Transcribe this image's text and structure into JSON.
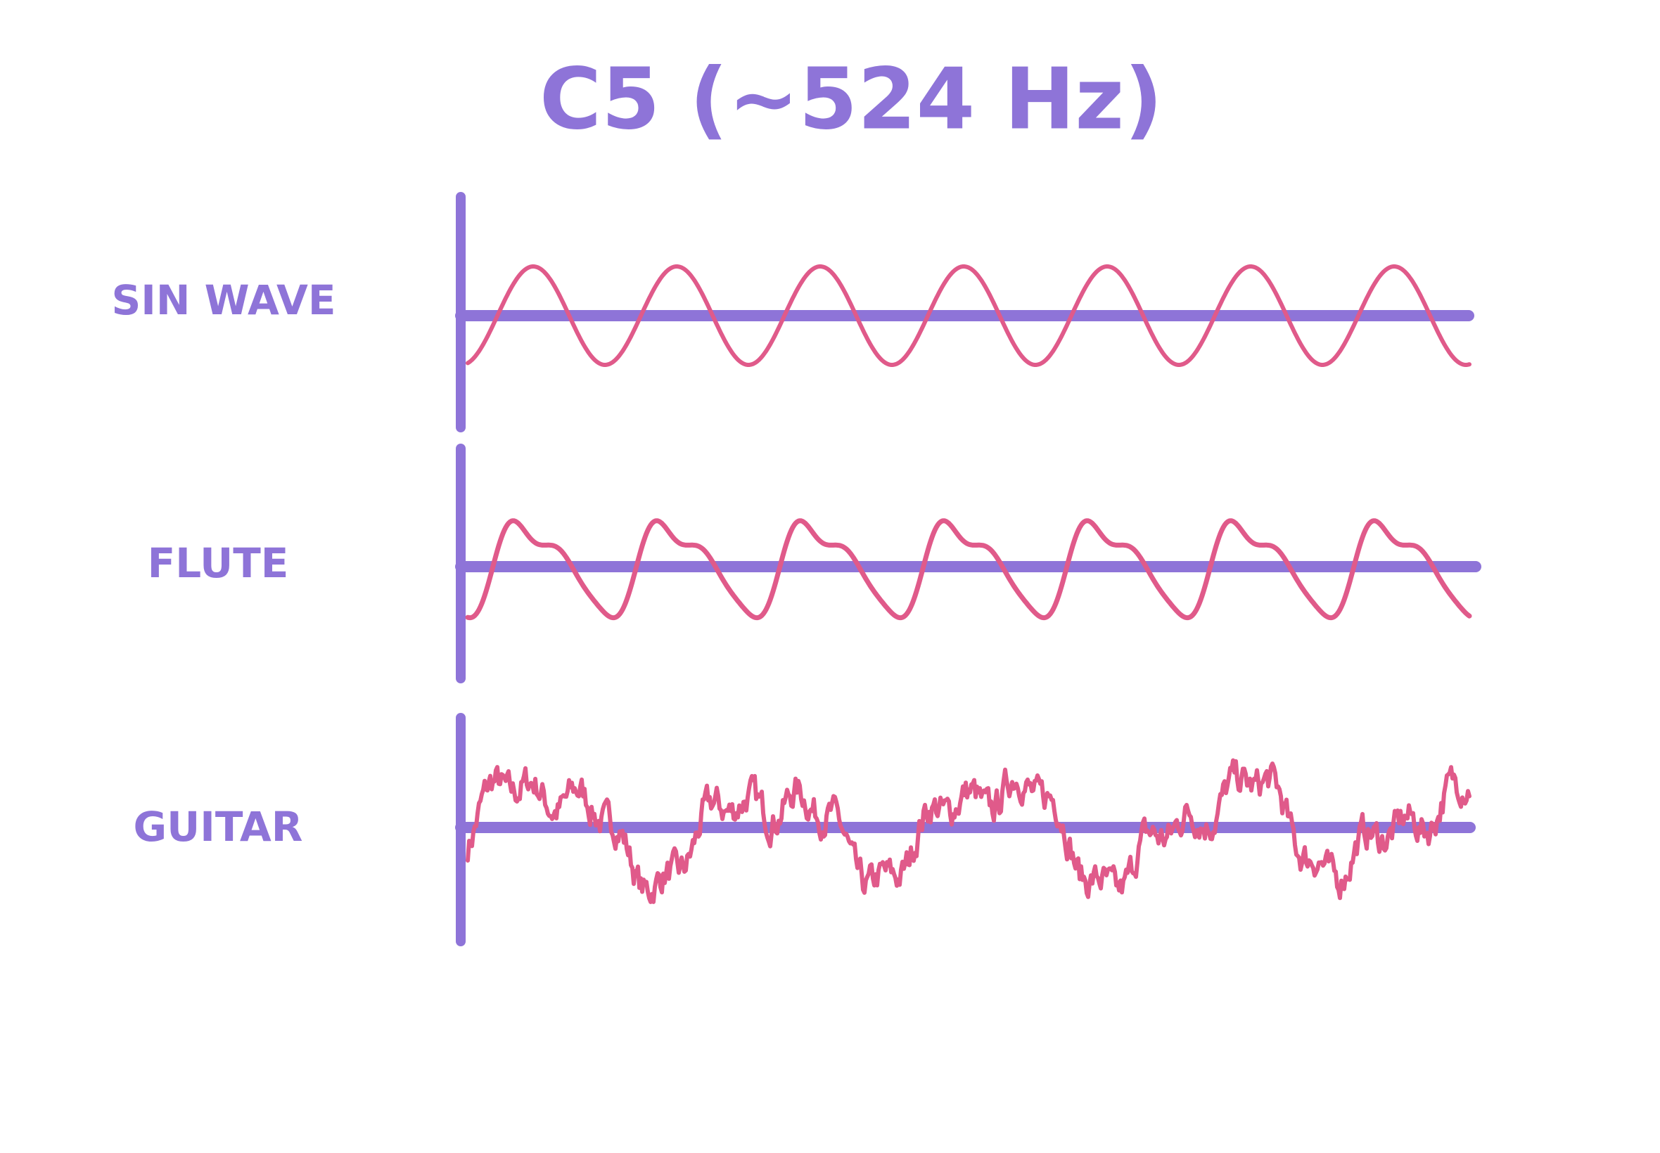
{
  "title": "C5 (~524 Hz)",
  "rows": [
    {
      "label": "SIN WAVE"
    },
    {
      "label": "FLUTE"
    },
    {
      "label": "GUITAR"
    }
  ]
}
